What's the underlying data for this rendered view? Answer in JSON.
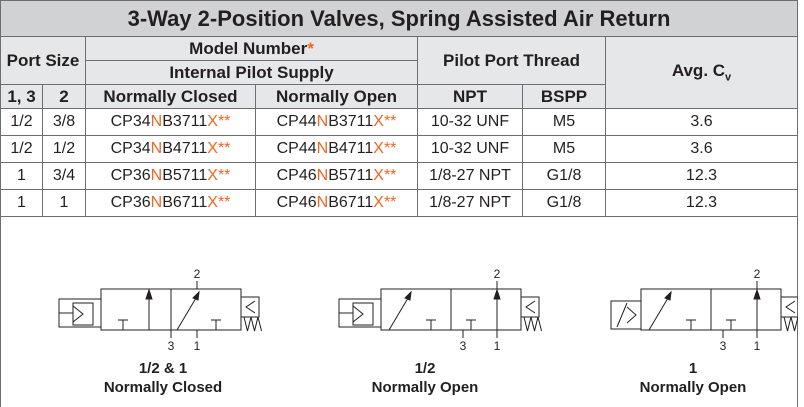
{
  "title": "3-Way 2-Position Valves, Spring Assisted Air Return",
  "headers": {
    "port_size": "Port Size",
    "model_number": [
      "Model Number",
      "*"
    ],
    "internal_pilot": "Internal Pilot Supply",
    "pilot_port_thread": "Pilot Port Thread",
    "avg_cv": [
      "Avg. C",
      "v"
    ],
    "sub": [
      "1, 3",
      "2",
      "Normally Closed",
      "Normally Open",
      "NPT",
      "BSPP"
    ]
  },
  "rows": [
    [
      "1/2",
      "3/8",
      [
        "CP34",
        "N",
        "B3711",
        "X**"
      ],
      [
        "CP44",
        "N",
        "B3711",
        "X**"
      ],
      "10-32 UNF",
      "M5",
      "3.6"
    ],
    [
      "1/2",
      "1/2",
      [
        "CP34",
        "N",
        "B4711",
        "X**"
      ],
      [
        "CP44",
        "N",
        "B4711",
        "X**"
      ],
      "10-32 UNF",
      "M5",
      "3.6"
    ],
    [
      "1",
      "3/4",
      [
        "CP36",
        "N",
        "B5711",
        "X**"
      ],
      [
        "CP46",
        "N",
        "B5711",
        "X**"
      ],
      "1/8-27 NPT",
      "G1/8",
      "12.3"
    ],
    [
      "1",
      "1",
      [
        "CP36",
        "N",
        "B6711",
        "X**"
      ],
      [
        "CP46",
        "N",
        "B6711",
        "X**"
      ],
      "1/8-27 NPT",
      "G1/8",
      "12.3"
    ]
  ],
  "diagrams": [
    {
      "port_top": "2",
      "ports_bottom": [
        "3",
        "1"
      ],
      "caption": [
        "1/2 & 1",
        "Normally Closed"
      ]
    },
    {
      "port_top": "2",
      "ports_bottom": [
        "3",
        "1"
      ],
      "caption": [
        "1/2",
        "Normally Open"
      ]
    },
    {
      "port_top": "2",
      "ports_bottom": [
        "3",
        "1"
      ],
      "caption": [
        "1",
        "Normally Open"
      ]
    }
  ]
}
